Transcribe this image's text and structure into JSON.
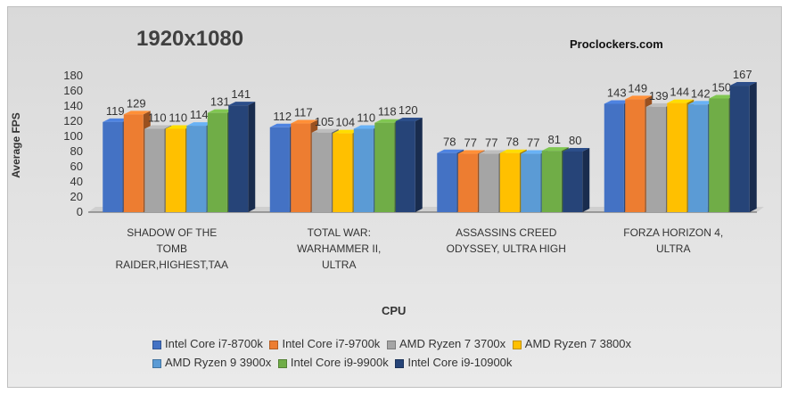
{
  "title": "1920x1080",
  "brand": "Proclockers.com",
  "colors": {
    "series": [
      "#4472c4",
      "#ed7d31",
      "#a5a5a5",
      "#ffc000",
      "#5b9bd5",
      "#70ad47",
      "#264478"
    ]
  },
  "chart_data": {
    "type": "bar",
    "xlabel": "CPU",
    "ylabel": "Average FPS",
    "ylim": [
      0,
      180
    ],
    "yticks": [
      0,
      20,
      40,
      60,
      80,
      100,
      120,
      140,
      160,
      180
    ],
    "grid": false,
    "legend_position": "bottom",
    "categories": [
      [
        "SHADOW OF THE",
        "TOMB",
        "RAIDER,HIGHEST,TAA"
      ],
      [
        "TOTAL WAR:",
        "WARHAMMER II,",
        "ULTRA"
      ],
      [
        "ASSASSINS CREED",
        "ODYSSEY, ULTRA HIGH"
      ],
      [
        "FORZA HORIZON 4,",
        "ULTRA"
      ]
    ],
    "series": [
      {
        "name": "Intel Core i7-8700k",
        "values": [
          119,
          112,
          78,
          143
        ]
      },
      {
        "name": "Intel Core i7-9700k",
        "values": [
          129,
          117,
          77,
          149
        ]
      },
      {
        "name": "AMD Ryzen 7 3700x",
        "values": [
          110,
          105,
          77,
          139
        ]
      },
      {
        "name": "AMD Ryzen 7 3800x",
        "values": [
          110,
          104,
          78,
          144
        ]
      },
      {
        "name": "AMD Ryzen 9 3900x",
        "values": [
          114,
          110,
          77,
          142
        ]
      },
      {
        "name": "Intel Core i9-9900k",
        "values": [
          131,
          118,
          81,
          150
        ]
      },
      {
        "name": "Intel Core i9-10900k",
        "values": [
          141,
          120,
          80,
          167
        ]
      }
    ]
  }
}
